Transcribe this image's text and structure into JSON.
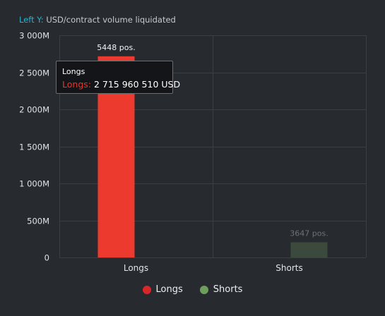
{
  "axis_caption": {
    "prefix": "Left Y:",
    "label": "USD/contract volume liquidated"
  },
  "chart_data": {
    "type": "bar",
    "categories": [
      "Longs",
      "Shorts"
    ],
    "series": [
      {
        "name": "Longs",
        "color": "#ec3b2e",
        "values": [
          2715960510,
          null
        ],
        "data_labels": [
          "5448 pos.",
          ""
        ]
      },
      {
        "name": "Shorts",
        "color": "#6d9e5d",
        "values": [
          null,
          205000000
        ],
        "data_labels": [
          "",
          "3647 pos."
        ]
      }
    ],
    "ylim": [
      0,
      3000000000
    ],
    "yticks": [
      0,
      500000000,
      1000000000,
      1500000000,
      2000000000,
      2500000000,
      3000000000
    ],
    "ytick_labels": [
      "0",
      "500M",
      "1 000M",
      "1 500M",
      "2 000M",
      "2 500M",
      "3 000M"
    ],
    "grid": true
  },
  "tooltip": {
    "title": "Longs",
    "series": "Longs:",
    "value": "2 715 960 510 USD"
  },
  "legend": [
    {
      "label": "Longs",
      "color": "#d8262a"
    },
    {
      "label": "Shorts",
      "color": "#6d9e5d"
    }
  ]
}
